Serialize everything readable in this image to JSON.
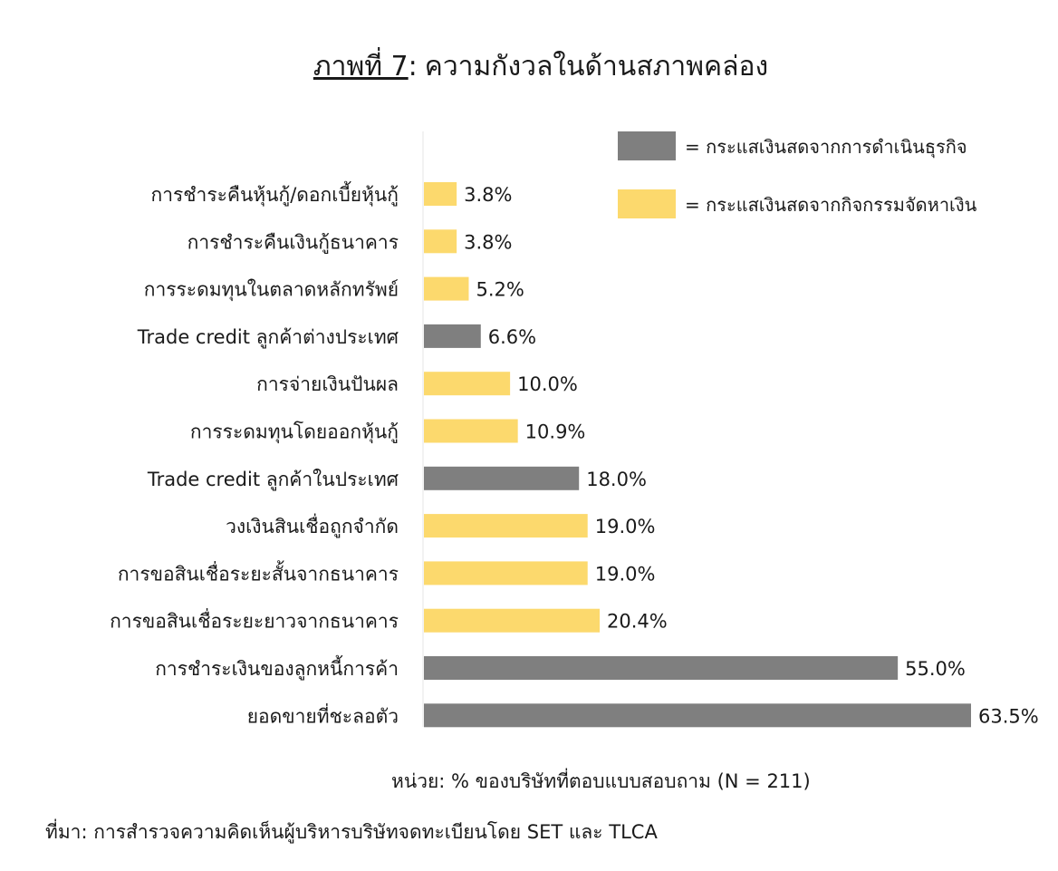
{
  "chart_data": {
    "type": "bar",
    "orientation": "horizontal",
    "title_prefix": "ภาพที่ 7",
    "title_separator": ":",
    "title": "ความกังวลในด้านสภาพคล่อง",
    "categories": [
      "การชำระคืนหุ้นกู้/ดอกเบี้ยหุ้นกู้",
      "การชำระคืนเงินกู้ธนาคาร",
      "การระดมทุนในตลาดหลักทรัพย์",
      "Trade credit ลูกค้าต่างประเทศ",
      "การจ่ายเงินปันผล",
      "การระดมทุนโดยออกหุ้นกู้",
      "Trade credit ลูกค้าในประเทศ",
      "วงเงินสินเชื่อถูกจำกัด",
      "การขอสินเชื่อระยะสั้นจากธนาคาร",
      "การขอสินเชื่อระยะยาวจากธนาคาร",
      "การชำระเงินของลูกหนี้การค้า",
      "ยอดขายที่ชะลอตัว"
    ],
    "values": [
      3.8,
      3.8,
      5.2,
      6.6,
      10.0,
      10.9,
      18.0,
      19.0,
      19.0,
      20.4,
      55.0,
      63.5
    ],
    "value_labels": [
      "3.8%",
      "3.8%",
      "5.2%",
      "6.6%",
      "10.0%",
      "10.9%",
      "18.0%",
      "19.0%",
      "19.0%",
      "20.4%",
      "55.0%",
      "63.5%"
    ],
    "group": [
      "financing",
      "financing",
      "financing",
      "operating",
      "financing",
      "financing",
      "operating",
      "financing",
      "financing",
      "financing",
      "operating",
      "operating"
    ],
    "legend": [
      {
        "key": "operating",
        "label": "= กระแสเงินสดจากการดำเนินธุรกิจ",
        "color": "#7f7f7f"
      },
      {
        "key": "financing",
        "label": "= กระแสเงินสดจากกิจกรรมจัดหาเงิน",
        "color": "#fcd96d"
      }
    ],
    "legend_position": "top-right",
    "xlim": [
      0,
      63.5
    ],
    "grid": false,
    "unit_note": "หน่วย:  % ของบริษัทที่ตอบแบบสอบถาม (N = 211)",
    "source_note": "ที่มา: การสำรวจความคิดเห็นผู้บริหารบริษัทจดทะเบียนโดย SET และ TLCA"
  }
}
